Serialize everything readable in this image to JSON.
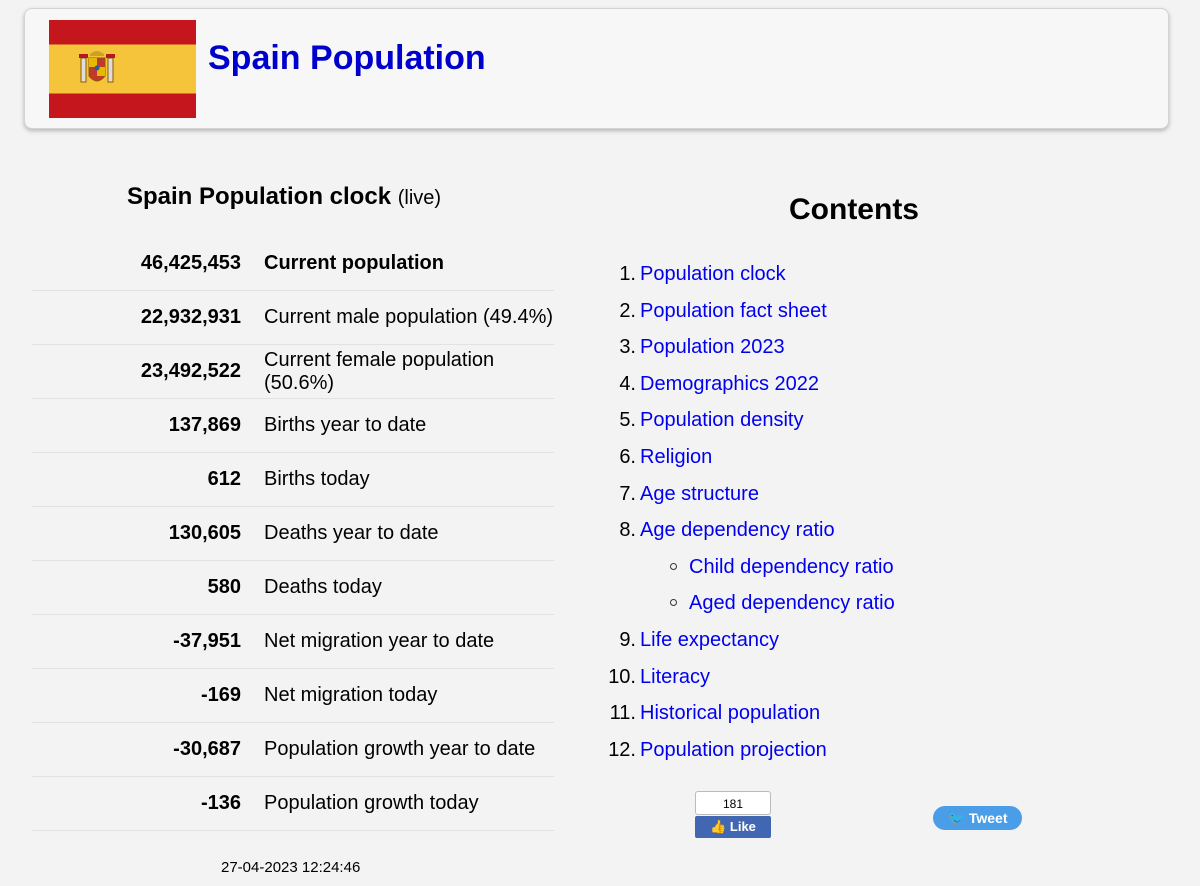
{
  "header": {
    "title": "Spain Population"
  },
  "clock": {
    "title": "Spain Population clock",
    "live_label": "(live)",
    "rows": [
      {
        "value": "46,425,453",
        "label": "Current population"
      },
      {
        "value": "22,932,931",
        "label": "Current male population (49.4%)"
      },
      {
        "value": "23,492,522",
        "label": "Current female population (50.6%)"
      },
      {
        "value": "137,869",
        "label": "Births year to date"
      },
      {
        "value": "612",
        "label": "Births today"
      },
      {
        "value": "130,605",
        "label": "Deaths year to date"
      },
      {
        "value": "580",
        "label": "Deaths today"
      },
      {
        "value": "-37,951",
        "label": "Net migration year to date"
      },
      {
        "value": "-169",
        "label": "Net migration today"
      },
      {
        "value": "-30,687",
        "label": "Population growth year to date"
      },
      {
        "value": "-136",
        "label": "Population growth today"
      }
    ],
    "timestamp": "27-04-2023 12:24:46"
  },
  "contents": {
    "title": "Contents",
    "items": [
      {
        "num": "1.",
        "label": "Population clock"
      },
      {
        "num": "2.",
        "label": "Population fact sheet"
      },
      {
        "num": "3.",
        "label": "Population 2023"
      },
      {
        "num": "4.",
        "label": "Demographics 2022"
      },
      {
        "num": "5.",
        "label": "Population density"
      },
      {
        "num": "6.",
        "label": "Religion"
      },
      {
        "num": "7.",
        "label": "Age structure"
      },
      {
        "num": "8.",
        "label": "Age dependency ratio"
      },
      {
        "num": "",
        "label": "Child dependency ratio",
        "sub": true
      },
      {
        "num": "",
        "label": "Aged dependency ratio",
        "sub": true
      },
      {
        "num": "9.",
        "label": "Life expectancy"
      },
      {
        "num": "10.",
        "label": "Literacy"
      },
      {
        "num": "11.",
        "label": "Historical population"
      },
      {
        "num": "12.",
        "label": "Population projection"
      }
    ]
  },
  "social": {
    "like_count": "181",
    "like_label": "Like",
    "tweet_label": "Tweet",
    "like_color": "#4267b2",
    "tweet_color": "#4a9ee8"
  },
  "colors": {
    "link": "#0000ee",
    "title": "#0000cc"
  }
}
